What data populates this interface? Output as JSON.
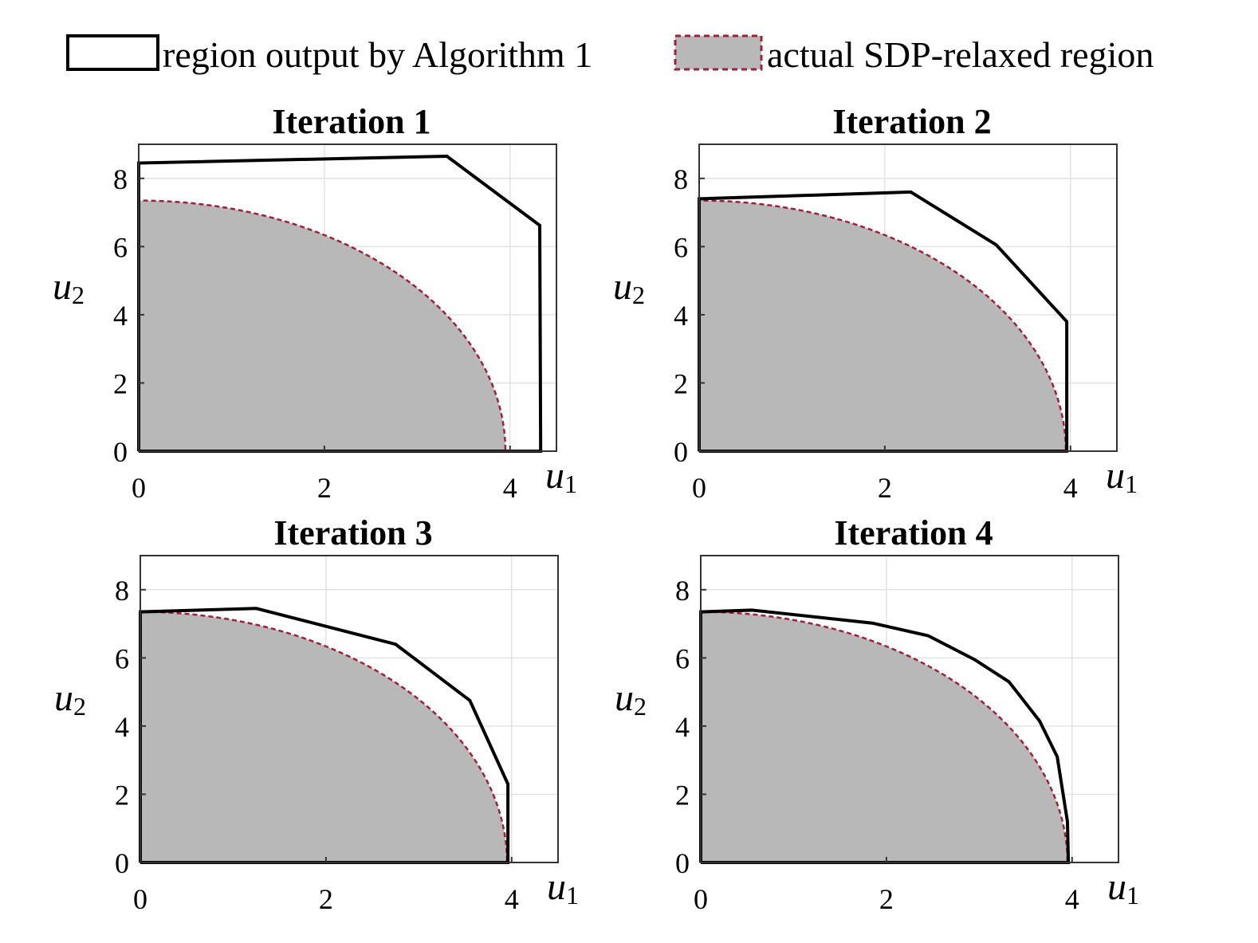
{
  "legend": {
    "region_output_label": "region output by Algorithm 1",
    "actual_region_label": "actual SDP-relaxed region"
  },
  "colors": {
    "fill": "#b8b8b8",
    "dashed_border": "#a0203a",
    "output_line": "#000000",
    "grid": "#e2e2e2"
  },
  "chart_data": [
    {
      "type": "area",
      "title": "Iteration 1",
      "xlabel": "u",
      "xlabel_sub": "1",
      "ylabel": "u",
      "ylabel_sub": "2",
      "xlim": [
        0,
        4.5
      ],
      "ylim": [
        0,
        9
      ],
      "xticks": [
        0,
        2,
        4
      ],
      "yticks": [
        0,
        2,
        4,
        6,
        8
      ],
      "grid": true,
      "actual_region": {
        "a": 3.95,
        "b": 7.35
      },
      "output_region": [
        [
          0,
          0
        ],
        [
          0,
          8.45
        ],
        [
          3.32,
          8.65
        ],
        [
          4.32,
          6.62
        ],
        [
          4.33,
          0
        ],
        [
          0,
          0
        ]
      ]
    },
    {
      "type": "area",
      "title": "Iteration 2",
      "xlabel": "u",
      "xlabel_sub": "1",
      "ylabel": "u",
      "ylabel_sub": "2",
      "xlim": [
        0,
        4.5
      ],
      "ylim": [
        0,
        9
      ],
      "xticks": [
        0,
        2,
        4
      ],
      "yticks": [
        0,
        2,
        4,
        6,
        8
      ],
      "grid": true,
      "actual_region": {
        "a": 3.95,
        "b": 7.35
      },
      "output_region": [
        [
          0,
          0
        ],
        [
          0,
          7.4
        ],
        [
          2.28,
          7.6
        ],
        [
          3.2,
          6.05
        ],
        [
          3.96,
          3.8
        ],
        [
          3.96,
          0
        ],
        [
          0,
          0
        ]
      ]
    },
    {
      "type": "area",
      "title": "Iteration 3",
      "xlabel": "u",
      "xlabel_sub": "1",
      "ylabel": "u",
      "ylabel_sub": "2",
      "xlim": [
        0,
        4.5
      ],
      "ylim": [
        0,
        9
      ],
      "xticks": [
        0,
        2,
        4
      ],
      "yticks": [
        0,
        2,
        4,
        6,
        8
      ],
      "grid": true,
      "actual_region": {
        "a": 3.95,
        "b": 7.35
      },
      "output_region": [
        [
          0,
          0
        ],
        [
          0,
          7.35
        ],
        [
          1.25,
          7.45
        ],
        [
          2.75,
          6.4
        ],
        [
          3.55,
          4.75
        ],
        [
          3.96,
          2.3
        ],
        [
          3.96,
          0
        ],
        [
          0,
          0
        ]
      ]
    },
    {
      "type": "area",
      "title": "Iteration 4",
      "xlabel": "u",
      "xlabel_sub": "1",
      "ylabel": "u",
      "ylabel_sub": "2",
      "xlim": [
        0,
        4.5
      ],
      "ylim": [
        0,
        9
      ],
      "xticks": [
        0,
        2,
        4
      ],
      "yticks": [
        0,
        2,
        4,
        6,
        8
      ],
      "grid": true,
      "actual_region": {
        "a": 3.95,
        "b": 7.35
      },
      "output_region": [
        [
          0,
          0
        ],
        [
          0,
          7.35
        ],
        [
          0.55,
          7.4
        ],
        [
          1.85,
          7.02
        ],
        [
          2.45,
          6.65
        ],
        [
          2.95,
          5.95
        ],
        [
          3.32,
          5.3
        ],
        [
          3.65,
          4.15
        ],
        [
          3.84,
          3.1
        ],
        [
          3.95,
          1.2
        ],
        [
          3.96,
          0
        ],
        [
          0,
          0
        ]
      ]
    }
  ]
}
